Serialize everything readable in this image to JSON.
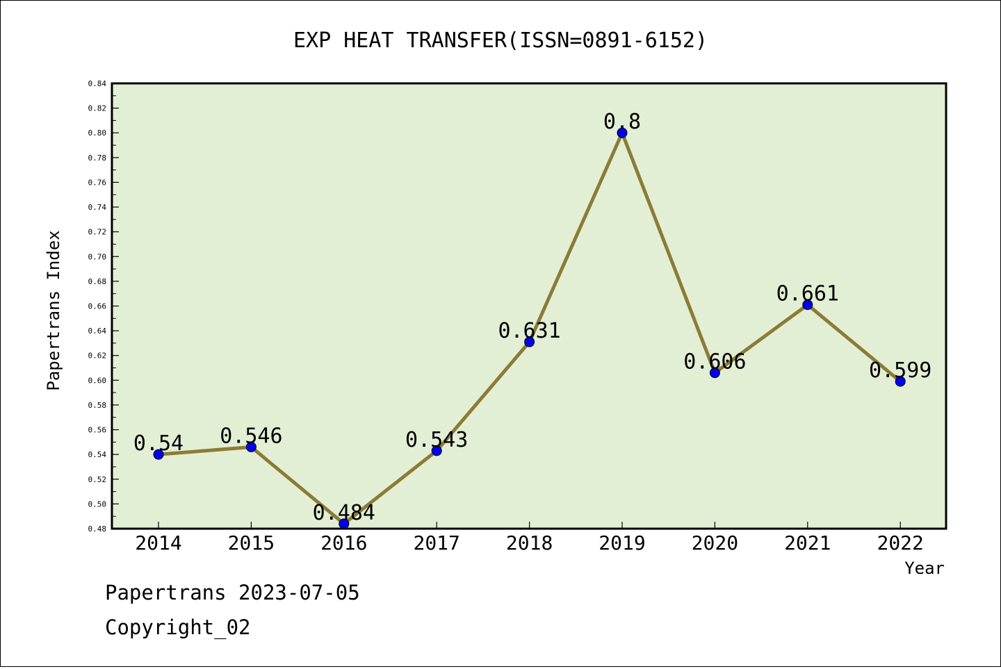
{
  "chart_data": {
    "type": "line",
    "title": "EXP HEAT TRANSFER(ISSN=0891-6152)",
    "xlabel": "Year",
    "ylabel": "Papertrans Index",
    "categories": [
      "2014",
      "2015",
      "2016",
      "2017",
      "2018",
      "2019",
      "2020",
      "2021",
      "2022"
    ],
    "values": [
      0.54,
      0.546,
      0.484,
      0.543,
      0.631,
      0.8,
      0.606,
      0.661,
      0.599
    ],
    "data_labels": [
      "0.54",
      "0.546",
      "0.484",
      "0.543",
      "0.631",
      "0.8",
      "0.606",
      "0.661",
      "0.599"
    ],
    "ylim": [
      0.48,
      0.84
    ],
    "yticks": [
      "0.48",
      "0.50",
      "0.52",
      "0.54",
      "0.56",
      "0.58",
      "0.60",
      "0.62",
      "0.64",
      "0.66",
      "0.68",
      "0.70",
      "0.72",
      "0.74",
      "0.76",
      "0.78",
      "0.80",
      "0.82",
      "0.84"
    ],
    "grid": false,
    "colors": {
      "plot_background": "#e2efd5",
      "line": "#8c7b37",
      "marker": "#0000ee"
    }
  },
  "footer": {
    "line1": "Papertrans 2023-07-05",
    "line2": "Copyright_02"
  }
}
